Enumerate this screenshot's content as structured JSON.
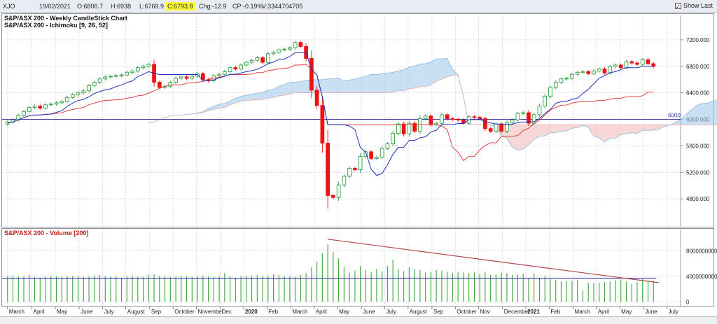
{
  "toolbar": {
    "symbol": "XJO",
    "date": "19/02/2021",
    "open": "O:6806.7",
    "high": "H:6938",
    "low": "L:6769.9",
    "close": "C:6793.8",
    "change": "Chg:-12.9",
    "change_pct": "CP:-0.19%",
    "volume": "V:3344704705",
    "show_last_label": "Show Last",
    "show_last_checked": "✓"
  },
  "colors": {
    "bull": "#2ea043",
    "bear": "#ee1111",
    "tenkan": "#1f2fbf",
    "kijun": "#e04040",
    "cloud_bull": "#9cc6ea",
    "cloud_bear": "#f2b7b7",
    "hline": "#3a3aa0",
    "volume_bar": "#3da33d",
    "volume_ma": "#2a2ab0",
    "trendline": "#b04848"
  },
  "price_chart": {
    "title_1": "S&P/ASX 200 - Weekly CandleStick Chart",
    "title_2": "S&P/ASX 200 - Ichimoku [9, 26, 52]",
    "y_ticks": [
      "7200.000",
      "6800.000",
      "6400.000",
      "6000.000",
      "5600.000",
      "5200.000",
      "4800.000"
    ],
    "y_tick_values": [
      7200,
      6800,
      6400,
      6000,
      5600,
      5200,
      4800
    ],
    "ylim": [
      4400,
      7400
    ],
    "hline": {
      "value": 6000,
      "label": "6000"
    }
  },
  "volume_chart": {
    "title": "S&P/ASX 200 - Volume [200]",
    "y_ticks": [
      "8000000000",
      "4000000000",
      "0"
    ],
    "y_tick_values": [
      8000000000,
      4000000000,
      0
    ],
    "ylim": [
      -500000000,
      10000000000
    ]
  },
  "x_axis": {
    "labels": [
      {
        "text": "March",
        "week": 0,
        "bold": false
      },
      {
        "text": "April",
        "week": 4.5,
        "bold": false
      },
      {
        "text": "May",
        "week": 8.8,
        "bold": false
      },
      {
        "text": "June",
        "week": 13.2,
        "bold": false
      },
      {
        "text": "July",
        "week": 17.5,
        "bold": false
      },
      {
        "text": "August",
        "week": 21.8,
        "bold": false
      },
      {
        "text": "Sep",
        "week": 26.2,
        "bold": false
      },
      {
        "text": "October",
        "week": 30.5,
        "bold": false
      },
      {
        "text": "November",
        "week": 34.8,
        "bold": false
      },
      {
        "text": "Dec",
        "week": 39.2,
        "bold": false
      },
      {
        "text": "2020",
        "week": 43.5,
        "bold": true
      },
      {
        "text": "Feb",
        "week": 47.8,
        "bold": false
      },
      {
        "text": "March",
        "week": 52.2,
        "bold": false
      },
      {
        "text": "April",
        "week": 56.5,
        "bold": false
      },
      {
        "text": "May",
        "week": 60.8,
        "bold": false
      },
      {
        "text": "June",
        "week": 65.2,
        "bold": false
      },
      {
        "text": "July",
        "week": 69.5,
        "bold": false
      },
      {
        "text": "August",
        "week": 73.8,
        "bold": false
      },
      {
        "text": "Sep",
        "week": 78.2,
        "bold": false
      },
      {
        "text": "October",
        "week": 82.5,
        "bold": false
      },
      {
        "text": "Nov",
        "week": 86.8,
        "bold": false
      },
      {
        "text": "December",
        "week": 91.2,
        "bold": false
      },
      {
        "text": "2021",
        "week": 95.5,
        "bold": true
      },
      {
        "text": "Feb",
        "week": 99.8,
        "bold": false
      },
      {
        "text": "March",
        "week": 104.2,
        "bold": false
      },
      {
        "text": "April",
        "week": 108.5,
        "bold": false
      },
      {
        "text": "May",
        "week": 112.8,
        "bold": false
      },
      {
        "text": "June",
        "week": 117.2,
        "bold": false
      },
      {
        "text": "July",
        "week": 121.5,
        "bold": false
      }
    ],
    "week_range": [
      -1,
      124
    ]
  },
  "chart_data": {
    "type": "candlestick",
    "closes": [
      5960,
      5990,
      6060,
      6120,
      6180,
      6200,
      6170,
      6220,
      6230,
      6250,
      6270,
      6330,
      6370,
      6400,
      6430,
      6510,
      6560,
      6610,
      6640,
      6650,
      6660,
      6670,
      6710,
      6730,
      6780,
      6800,
      6830,
      6560,
      6480,
      6500,
      6560,
      6620,
      6640,
      6620,
      6650,
      6690,
      6600,
      6580,
      6660,
      6680,
      6720,
      6780,
      6760,
      6820,
      6860,
      6890,
      6930,
      6860,
      6990,
      7010,
      7050,
      7060,
      7080,
      7160,
      7100,
      6920,
      6440,
      6210,
      5640,
      4850,
      4820,
      5010,
      5140,
      5260,
      5240,
      5440,
      5510,
      5410,
      5430,
      5560,
      5630,
      5790,
      5930,
      5780,
      5940,
      5820,
      6010,
      6050,
      5920,
      5940,
      6070,
      6010,
      6000,
      5990,
      5940,
      6040,
      6030,
      6010,
      5860,
      5820,
      5930,
      5820,
      5950,
      5990,
      6090,
      6100,
      5940,
      6070,
      6200,
      6350,
      6480,
      6560,
      6610,
      6620,
      6680,
      6710,
      6720,
      6690,
      6730,
      6760,
      6700,
      6800,
      6820,
      6780,
      6870,
      6850,
      6830,
      6900,
      6840,
      6800
    ],
    "tenkan_sen": "9-period Ichimoku conversion line",
    "kijun_sen": "26-period Ichimoku base line",
    "hline": 6000,
    "volume": [
      4000000000,
      4100000000,
      4000000000,
      4000000000,
      4200000000,
      3900000000,
      3800000000,
      4000000000,
      4100000000,
      4000000000,
      3900000000,
      4000000000,
      4100000000,
      4000000000,
      3900000000,
      4000000000,
      4100000000,
      4200000000,
      4000000000,
      3900000000,
      4000000000,
      3800000000,
      4000000000,
      4100000000,
      4000000000,
      3900000000,
      4200000000,
      4300000000,
      4100000000,
      4000000000,
      3900000000,
      4000000000,
      4100000000,
      4000000000,
      3900000000,
      4000000000,
      4100000000,
      4000000000,
      3900000000,
      4000000000,
      4500000000,
      4000000000,
      3800000000,
      4000000000,
      4100000000,
      4000000000,
      4200000000,
      4100000000,
      4000000000,
      4300000000,
      4200000000,
      4100000000,
      4000000000,
      3900000000,
      4200000000,
      4500000000,
      5400000000,
      6300000000,
      7600000000,
      9000000000,
      7800000000,
      6800000000,
      5400000000,
      4600000000,
      4900000000,
      5600000000,
      5000000000,
      4700000000,
      5200000000,
      4800000000,
      5600000000,
      6600000000,
      5200000000,
      4800000000,
      5400000000,
      5100000000,
      5000000000,
      4600000000,
      4700000000,
      5000000000,
      4900000000,
      4700000000,
      4500000000,
      4700000000,
      4600000000,
      4500000000,
      4600000000,
      4400000000,
      4700000000,
      4200000000,
      4300000000,
      4600000000,
      4500000000,
      4200000000,
      4300000000,
      4400000000,
      3700000000,
      4500000000,
      3800000000,
      4000000000,
      3600000000,
      3400000000,
      3200000000,
      3300000000,
      3300000000,
      3400000000,
      1800000000,
      3000000000,
      2900000000,
      3000000000,
      3100000000,
      3200000000,
      3400000000,
      3500000000,
      3200000000,
      2800000000,
      3100000000,
      3600000000,
      3300000000,
      3344704705
    ],
    "volume_ma": 3700000000,
    "trendline": {
      "from_week": 59,
      "from_value": 9800000000,
      "to_week": 120,
      "to_value": 3000000000
    }
  }
}
